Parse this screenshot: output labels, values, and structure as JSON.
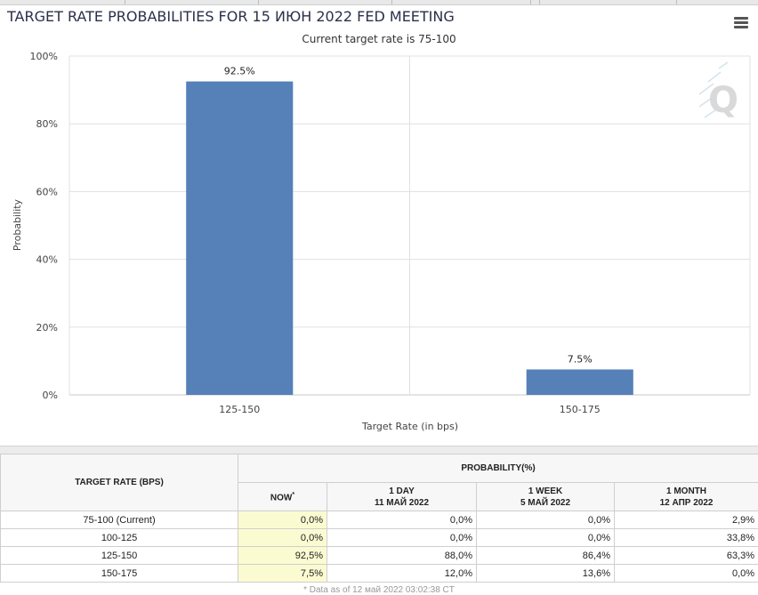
{
  "title": "TARGET RATE PROBABILITIES FOR 15 ИЮН 2022 FED MEETING",
  "subtitle": "Current target rate is 75-100",
  "menu_icon": "hamburger-menu-icon",
  "logo_letter": "Q",
  "colors": {
    "bar": "#5580b8",
    "grid": "#e0e0e0",
    "now_highlight": "#fbfbd2",
    "title": "#2b2f4a"
  },
  "chart_data": {
    "type": "bar",
    "categories": [
      "125-150",
      "150-175"
    ],
    "values": [
      92.5,
      7.5
    ],
    "data_labels": [
      "92.5%",
      "7.5%"
    ],
    "xlabel": "Target Rate (in bps)",
    "ylabel": "Probability",
    "ylim": [
      0,
      100
    ],
    "yticks": [
      0,
      20,
      40,
      60,
      80,
      100
    ],
    "ytick_labels": [
      "0%",
      "20%",
      "40%",
      "60%",
      "80%",
      "100%"
    ],
    "grid": true
  },
  "table": {
    "rate_header": "TARGET RATE (BPS)",
    "group_header": "PROBABILITY(%)",
    "columns": [
      {
        "line1": "NOW",
        "sup": "*",
        "line2": ""
      },
      {
        "line1": "1 DAY",
        "line2": "11 МАЙ 2022"
      },
      {
        "line1": "1 WEEK",
        "line2": "5 МАЙ 2022"
      },
      {
        "line1": "1 MONTH",
        "line2": "12 АПР 2022"
      }
    ],
    "rows": [
      {
        "rate": "75-100 (Current)",
        "values": [
          "0,0%",
          "0,0%",
          "0,0%",
          "2,9%"
        ]
      },
      {
        "rate": "100-125",
        "values": [
          "0,0%",
          "0,0%",
          "0,0%",
          "33,8%"
        ]
      },
      {
        "rate": "125-150",
        "values": [
          "92,5%",
          "88,0%",
          "86,4%",
          "63,3%"
        ]
      },
      {
        "rate": "150-175",
        "values": [
          "7,5%",
          "12,0%",
          "13,6%",
          "0,0%"
        ]
      }
    ]
  },
  "footnote": "* Data as of 12 май 2022 03:02:38 CT"
}
